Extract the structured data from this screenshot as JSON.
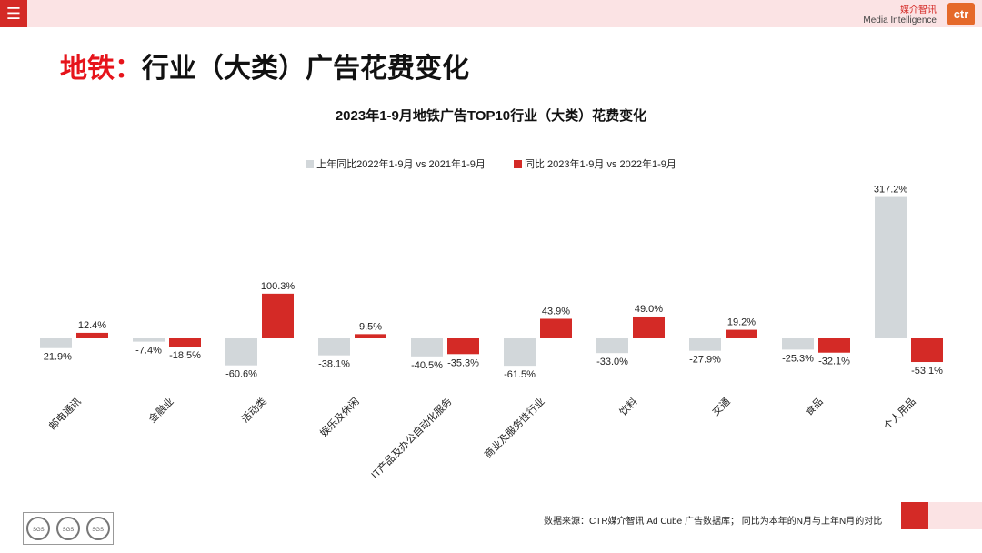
{
  "header": {
    "menu_icon": "hamburger-menu-icon",
    "brand_cn": "媒介智讯",
    "brand_en": "Media Intelligence",
    "logo_text": "ctr"
  },
  "page_title": {
    "accent": "地铁：",
    "text": "行业（大类）广告花费变化"
  },
  "chart_data": {
    "type": "bar",
    "title": "2023年1-9月地铁广告TOP10行业（大类）花费变化",
    "categories": [
      "邮电通讯",
      "金融业",
      "活动类",
      "娱乐及休闲",
      "IT产品及办公自动化服务",
      "商业及服务性行业",
      "饮料",
      "交通",
      "食品",
      "个人用品"
    ],
    "series": [
      {
        "name": "上年同比2022年1-9月  vs  2021年1-9月",
        "color": "#d2d7da",
        "values": [
          -21.9,
          -7.4,
          -60.6,
          -38.1,
          -40.5,
          -61.5,
          -33.0,
          -27.9,
          -25.3,
          317.2
        ],
        "labels": [
          "-21.9%",
          "-7.4%",
          "-60.6%",
          "-38.1%",
          "-40.5%",
          "-61.5%",
          "-33.0%",
          "-27.9%",
          "-25.3%",
          "317.2%"
        ]
      },
      {
        "name": "同比 2023年1-9月  vs  2022年1-9月",
        "color": "#d42a26",
        "values": [
          12.4,
          -18.5,
          100.3,
          9.5,
          -35.3,
          43.9,
          49.0,
          19.2,
          -32.1,
          -53.1
        ],
        "labels": [
          "12.4%",
          "-18.5%",
          "100.3%",
          "9.5%",
          "-35.3%",
          "43.9%",
          "49.0%",
          "19.2%",
          "-32.1%",
          "-53.1%"
        ]
      }
    ],
    "ylim": [
      -70,
      330
    ],
    "legend": "top-center"
  },
  "footer": {
    "source": "数据来源：CTR媒介智讯 Ad Cube 广告数据库；  同比为本年的N月与上年N月的对比",
    "cert_label": "SGS"
  }
}
